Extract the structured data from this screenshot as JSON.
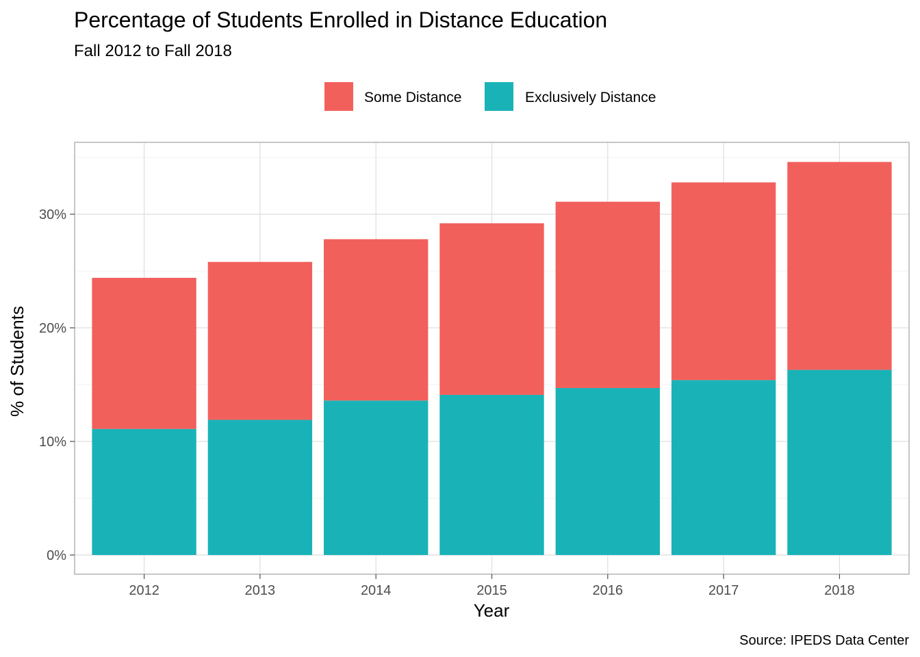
{
  "title": "Percentage of Students Enrolled in Distance Education",
  "subtitle": "Fall 2012 to Fall 2018",
  "caption": "Source: IPEDS Data Center",
  "legend": [
    {
      "label": "Some Distance",
      "color": "#F2605C"
    },
    {
      "label": "Exclusively Distance",
      "color": "#19B3B7"
    }
  ],
  "chart_data": {
    "type": "bar",
    "stacked": true,
    "title": "Percentage of Students Enrolled in Distance Education",
    "subtitle": "Fall 2012 to Fall 2018",
    "xlabel": "Year",
    "ylabel": "% of Students",
    "categories": [
      "2012",
      "2013",
      "2014",
      "2015",
      "2016",
      "2017",
      "2018"
    ],
    "series": [
      {
        "name": "Exclusively Distance",
        "color": "#19B3B7",
        "values": [
          11.1,
          11.9,
          13.6,
          14.1,
          14.7,
          15.4,
          16.3
        ]
      },
      {
        "name": "Some Distance",
        "color": "#F2605C",
        "values": [
          13.3,
          13.9,
          14.2,
          15.1,
          16.4,
          17.4,
          18.3
        ]
      }
    ],
    "ylim": [
      0,
      36.5
    ],
    "yticks": [
      0,
      10,
      20,
      30
    ],
    "ytick_labels": [
      "0%",
      "10%",
      "20%",
      "30%"
    ],
    "grid": true,
    "legend_position": "top"
  }
}
